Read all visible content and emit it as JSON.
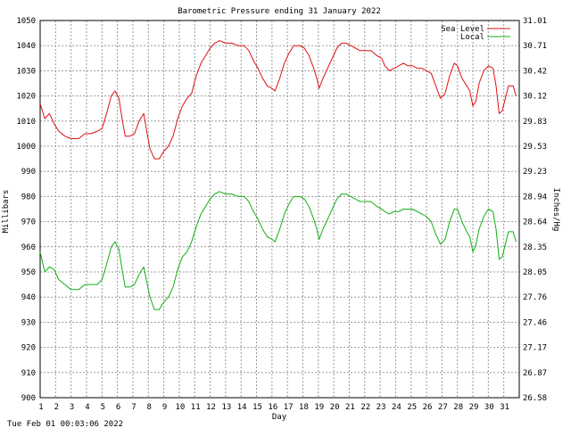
{
  "chart_data": {
    "type": "line",
    "title": "Barometric Pressure ending 31 January 2022",
    "xlabel": "Day",
    "ylabel": "Millibars",
    "y2label": "Inches/Hg",
    "footer": "Tue Feb 01 00:03:06 2022",
    "xlim": [
      1,
      32
    ],
    "ylim": [
      900,
      1050
    ],
    "x_ticks": [
      "1",
      "2",
      "3",
      "4",
      "5",
      "6",
      "7",
      "8",
      "9",
      "10",
      "11",
      "12",
      "13",
      "14",
      "15",
      "16",
      "17",
      "18",
      "19",
      "20",
      "21",
      "22",
      "23",
      "24",
      "25",
      "26",
      "27",
      "28",
      "29",
      "30",
      "31"
    ],
    "y_ticks": [
      "900",
      "910",
      "920",
      "930",
      "940",
      "950",
      "960",
      "970",
      "980",
      "990",
      "1000",
      "1010",
      "1020",
      "1030",
      "1040",
      "1050"
    ],
    "y2_ticks": [
      "26.58",
      "26.87",
      "27.17",
      "27.46",
      "27.76",
      "28.05",
      "28.35",
      "28.64",
      "28.94",
      "29.23",
      "29.53",
      "29.83",
      "30.12",
      "30.42",
      "30.71",
      "31.01"
    ],
    "grid": true,
    "legend_position": "top-right",
    "series": [
      {
        "name": "Sea Level",
        "color": "#e01010",
        "points": [
          [
            1.0,
            1017
          ],
          [
            1.3,
            1011
          ],
          [
            1.6,
            1013
          ],
          [
            1.9,
            1009
          ],
          [
            2.2,
            1006
          ],
          [
            2.6,
            1004
          ],
          [
            3.0,
            1003
          ],
          [
            3.5,
            1003
          ],
          [
            3.9,
            1005
          ],
          [
            4.3,
            1005
          ],
          [
            4.7,
            1006
          ],
          [
            5.0,
            1007
          ],
          [
            5.3,
            1013
          ],
          [
            5.6,
            1020
          ],
          [
            5.85,
            1022
          ],
          [
            6.1,
            1019
          ],
          [
            6.3,
            1011
          ],
          [
            6.5,
            1004
          ],
          [
            6.8,
            1004
          ],
          [
            7.1,
            1005
          ],
          [
            7.4,
            1010
          ],
          [
            7.7,
            1013
          ],
          [
            7.9,
            1006
          ],
          [
            8.1,
            999
          ],
          [
            8.4,
            995
          ],
          [
            8.7,
            995
          ],
          [
            9.0,
            998
          ],
          [
            9.3,
            1000
          ],
          [
            9.6,
            1004
          ],
          [
            9.9,
            1011
          ],
          [
            10.2,
            1016
          ],
          [
            10.5,
            1019
          ],
          [
            10.8,
            1021
          ],
          [
            11.1,
            1028
          ],
          [
            11.4,
            1033
          ],
          [
            11.7,
            1036
          ],
          [
            12.0,
            1039
          ],
          [
            12.3,
            1041
          ],
          [
            12.6,
            1042
          ],
          [
            13.0,
            1041
          ],
          [
            13.4,
            1041
          ],
          [
            13.8,
            1040
          ],
          [
            14.2,
            1040
          ],
          [
            14.5,
            1038
          ],
          [
            14.8,
            1034
          ],
          [
            15.1,
            1031
          ],
          [
            15.4,
            1027
          ],
          [
            15.7,
            1024
          ],
          [
            16.0,
            1023
          ],
          [
            16.2,
            1022
          ],
          [
            16.5,
            1027
          ],
          [
            16.8,
            1033
          ],
          [
            17.1,
            1037
          ],
          [
            17.4,
            1040
          ],
          [
            17.8,
            1040
          ],
          [
            18.1,
            1039
          ],
          [
            18.4,
            1036
          ],
          [
            18.7,
            1031
          ],
          [
            18.9,
            1027
          ],
          [
            19.05,
            1023
          ],
          [
            19.3,
            1027
          ],
          [
            19.6,
            1031
          ],
          [
            19.9,
            1035
          ],
          [
            20.2,
            1039
          ],
          [
            20.5,
            1041
          ],
          [
            20.8,
            1041
          ],
          [
            21.1,
            1040
          ],
          [
            21.4,
            1039
          ],
          [
            21.7,
            1038
          ],
          [
            22.0,
            1038
          ],
          [
            22.4,
            1038
          ],
          [
            22.8,
            1036
          ],
          [
            23.1,
            1035
          ],
          [
            23.3,
            1032
          ],
          [
            23.6,
            1030
          ],
          [
            23.9,
            1031
          ],
          [
            24.2,
            1032
          ],
          [
            24.5,
            1033
          ],
          [
            24.8,
            1032
          ],
          [
            25.1,
            1032
          ],
          [
            25.4,
            1031
          ],
          [
            25.7,
            1031
          ],
          [
            26.0,
            1030
          ],
          [
            26.3,
            1029
          ],
          [
            26.6,
            1024
          ],
          [
            26.9,
            1019
          ],
          [
            27.2,
            1021
          ],
          [
            27.5,
            1028
          ],
          [
            27.8,
            1033
          ],
          [
            28.0,
            1032
          ],
          [
            28.3,
            1027
          ],
          [
            28.6,
            1024
          ],
          [
            28.8,
            1022
          ],
          [
            29.0,
            1016
          ],
          [
            29.2,
            1018
          ],
          [
            29.4,
            1025
          ],
          [
            29.7,
            1030
          ],
          [
            30.0,
            1032
          ],
          [
            30.3,
            1031
          ],
          [
            30.5,
            1024
          ],
          [
            30.7,
            1013
          ],
          [
            30.9,
            1014
          ],
          [
            31.1,
            1019
          ],
          [
            31.3,
            1024
          ],
          [
            31.6,
            1024
          ],
          [
            31.8,
            1020
          ]
        ]
      },
      {
        "name": "Local",
        "color": "#10b010",
        "points": [
          [
            1.0,
            958
          ],
          [
            1.3,
            950
          ],
          [
            1.6,
            952
          ],
          [
            1.9,
            951
          ],
          [
            2.2,
            947
          ],
          [
            2.6,
            945
          ],
          [
            3.0,
            943
          ],
          [
            3.5,
            943
          ],
          [
            3.9,
            945
          ],
          [
            4.3,
            945
          ],
          [
            4.7,
            945
          ],
          [
            5.0,
            947
          ],
          [
            5.3,
            953
          ],
          [
            5.6,
            960
          ],
          [
            5.85,
            962
          ],
          [
            6.1,
            959
          ],
          [
            6.3,
            951
          ],
          [
            6.5,
            944
          ],
          [
            6.8,
            944
          ],
          [
            7.1,
            945
          ],
          [
            7.4,
            949
          ],
          [
            7.7,
            952
          ],
          [
            7.9,
            946
          ],
          [
            8.1,
            940
          ],
          [
            8.4,
            935
          ],
          [
            8.7,
            935
          ],
          [
            9.0,
            938
          ],
          [
            9.3,
            940
          ],
          [
            9.6,
            944
          ],
          [
            9.9,
            951
          ],
          [
            10.2,
            956
          ],
          [
            10.5,
            958
          ],
          [
            10.8,
            962
          ],
          [
            11.1,
            968
          ],
          [
            11.4,
            973
          ],
          [
            11.7,
            976
          ],
          [
            12.0,
            979
          ],
          [
            12.3,
            981
          ],
          [
            12.6,
            982
          ],
          [
            13.0,
            981
          ],
          [
            13.4,
            981
          ],
          [
            13.8,
            980
          ],
          [
            14.2,
            980
          ],
          [
            14.5,
            978
          ],
          [
            14.8,
            974
          ],
          [
            15.1,
            971
          ],
          [
            15.4,
            967
          ],
          [
            15.7,
            964
          ],
          [
            16.0,
            963
          ],
          [
            16.2,
            962
          ],
          [
            16.5,
            967
          ],
          [
            16.8,
            973
          ],
          [
            17.1,
            977
          ],
          [
            17.4,
            980
          ],
          [
            17.8,
            980
          ],
          [
            18.1,
            979
          ],
          [
            18.4,
            976
          ],
          [
            18.7,
            971
          ],
          [
            18.9,
            967
          ],
          [
            19.05,
            963
          ],
          [
            19.3,
            967
          ],
          [
            19.6,
            971
          ],
          [
            19.9,
            975
          ],
          [
            20.2,
            979
          ],
          [
            20.5,
            981
          ],
          [
            20.8,
            981
          ],
          [
            21.1,
            980
          ],
          [
            21.4,
            979
          ],
          [
            21.7,
            978
          ],
          [
            22.0,
            978
          ],
          [
            22.4,
            978
          ],
          [
            22.8,
            976
          ],
          [
            23.1,
            975
          ],
          [
            23.3,
            974
          ],
          [
            23.6,
            973
          ],
          [
            23.9,
            974
          ],
          [
            24.2,
            974
          ],
          [
            24.5,
            975
          ],
          [
            24.8,
            975
          ],
          [
            25.1,
            975
          ],
          [
            25.4,
            974
          ],
          [
            25.7,
            973
          ],
          [
            26.0,
            972
          ],
          [
            26.3,
            970
          ],
          [
            26.6,
            965
          ],
          [
            26.9,
            961
          ],
          [
            27.2,
            963
          ],
          [
            27.5,
            970
          ],
          [
            27.8,
            975
          ],
          [
            28.0,
            975
          ],
          [
            28.3,
            970
          ],
          [
            28.6,
            966
          ],
          [
            28.8,
            964
          ],
          [
            29.0,
            958
          ],
          [
            29.2,
            961
          ],
          [
            29.4,
            967
          ],
          [
            29.7,
            972
          ],
          [
            30.0,
            975
          ],
          [
            30.3,
            974
          ],
          [
            30.5,
            967
          ],
          [
            30.7,
            955
          ],
          [
            30.9,
            956
          ],
          [
            31.1,
            961
          ],
          [
            31.3,
            966
          ],
          [
            31.6,
            966
          ],
          [
            31.8,
            962
          ]
        ]
      }
    ]
  }
}
